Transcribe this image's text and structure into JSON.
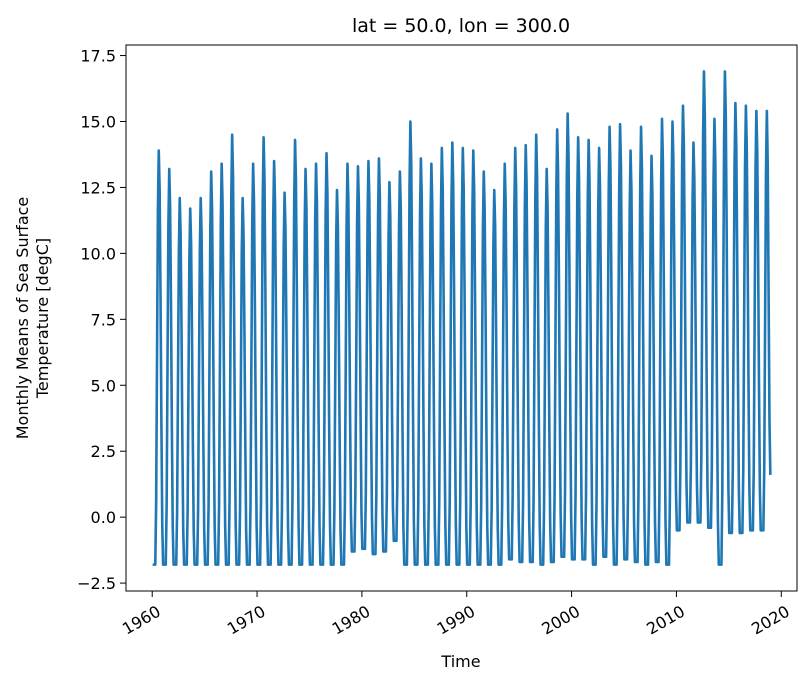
{
  "chart_data": {
    "type": "line",
    "title": "lat = 50.0, lon = 300.0",
    "xlabel": "Time",
    "ylabel_line1": "Monthly Means of Sea Surface",
    "ylabel_line2": "Temperature [degC]",
    "xlim": [
      1957.5,
      2021.5
    ],
    "ylim": [
      -2.8,
      17.9
    ],
    "x_ticks": [
      "1960",
      "1970",
      "1980",
      "1990",
      "2000",
      "2010",
      "2020"
    ],
    "x_tick_values": [
      1960,
      1970,
      1980,
      1990,
      2000,
      2010,
      2020
    ],
    "y_ticks": [
      "−2.5",
      "0.0",
      "2.5",
      "5.0",
      "7.5",
      "10.0",
      "12.5",
      "15.0",
      "17.5"
    ],
    "y_tick_values": [
      -2.5,
      0,
      2.5,
      5,
      7.5,
      10,
      12.5,
      15,
      17.5
    ],
    "grid": false,
    "line_color": "#1f77b4",
    "series": [
      {
        "start_year": 1960,
        "end_year": 2018,
        "annual_max": [
          13.9,
          13.2,
          12.1,
          11.7,
          12.1,
          13.1,
          13.4,
          14.5,
          12.1,
          13.4,
          14.4,
          13.5,
          12.3,
          14.3,
          13.2,
          13.4,
          13.8,
          12.4,
          13.4,
          13.3,
          13.5,
          13.6,
          12.7,
          13.1,
          15.0,
          13.6,
          13.4,
          14.0,
          14.2,
          14.0,
          13.9,
          13.1,
          12.4,
          13.4,
          14.0,
          14.1,
          14.5,
          13.2,
          14.7,
          15.3,
          14.4,
          14.3,
          14.0,
          14.8,
          14.9,
          13.9,
          14.8,
          13.7,
          15.1,
          15.0,
          15.6,
          14.2,
          16.9,
          15.1,
          16.9,
          15.7,
          15.6,
          15.4,
          15.4
        ],
        "annual_min": [
          -1.8,
          -1.8,
          -1.8,
          -1.8,
          -1.8,
          -1.8,
          -1.8,
          -1.8,
          -1.8,
          -1.8,
          -1.8,
          -1.8,
          -1.8,
          -1.8,
          -1.8,
          -1.8,
          -1.8,
          -1.8,
          -1.8,
          -1.3,
          -1.2,
          -1.4,
          -1.3,
          -0.9,
          -1.8,
          -1.8,
          -1.8,
          -1.8,
          -1.8,
          -1.8,
          -1.8,
          -1.8,
          -1.8,
          -1.8,
          -1.6,
          -1.7,
          -1.7,
          -1.8,
          -1.7,
          -1.5,
          -1.6,
          -1.6,
          -1.8,
          -1.5,
          -1.8,
          -1.6,
          -1.7,
          -1.8,
          -1.7,
          -1.8,
          -0.5,
          -0.2,
          -0.2,
          -0.4,
          -1.8,
          -0.6,
          -0.6,
          -0.5,
          -0.5
        ],
        "final_value": 1.6
      }
    ]
  }
}
